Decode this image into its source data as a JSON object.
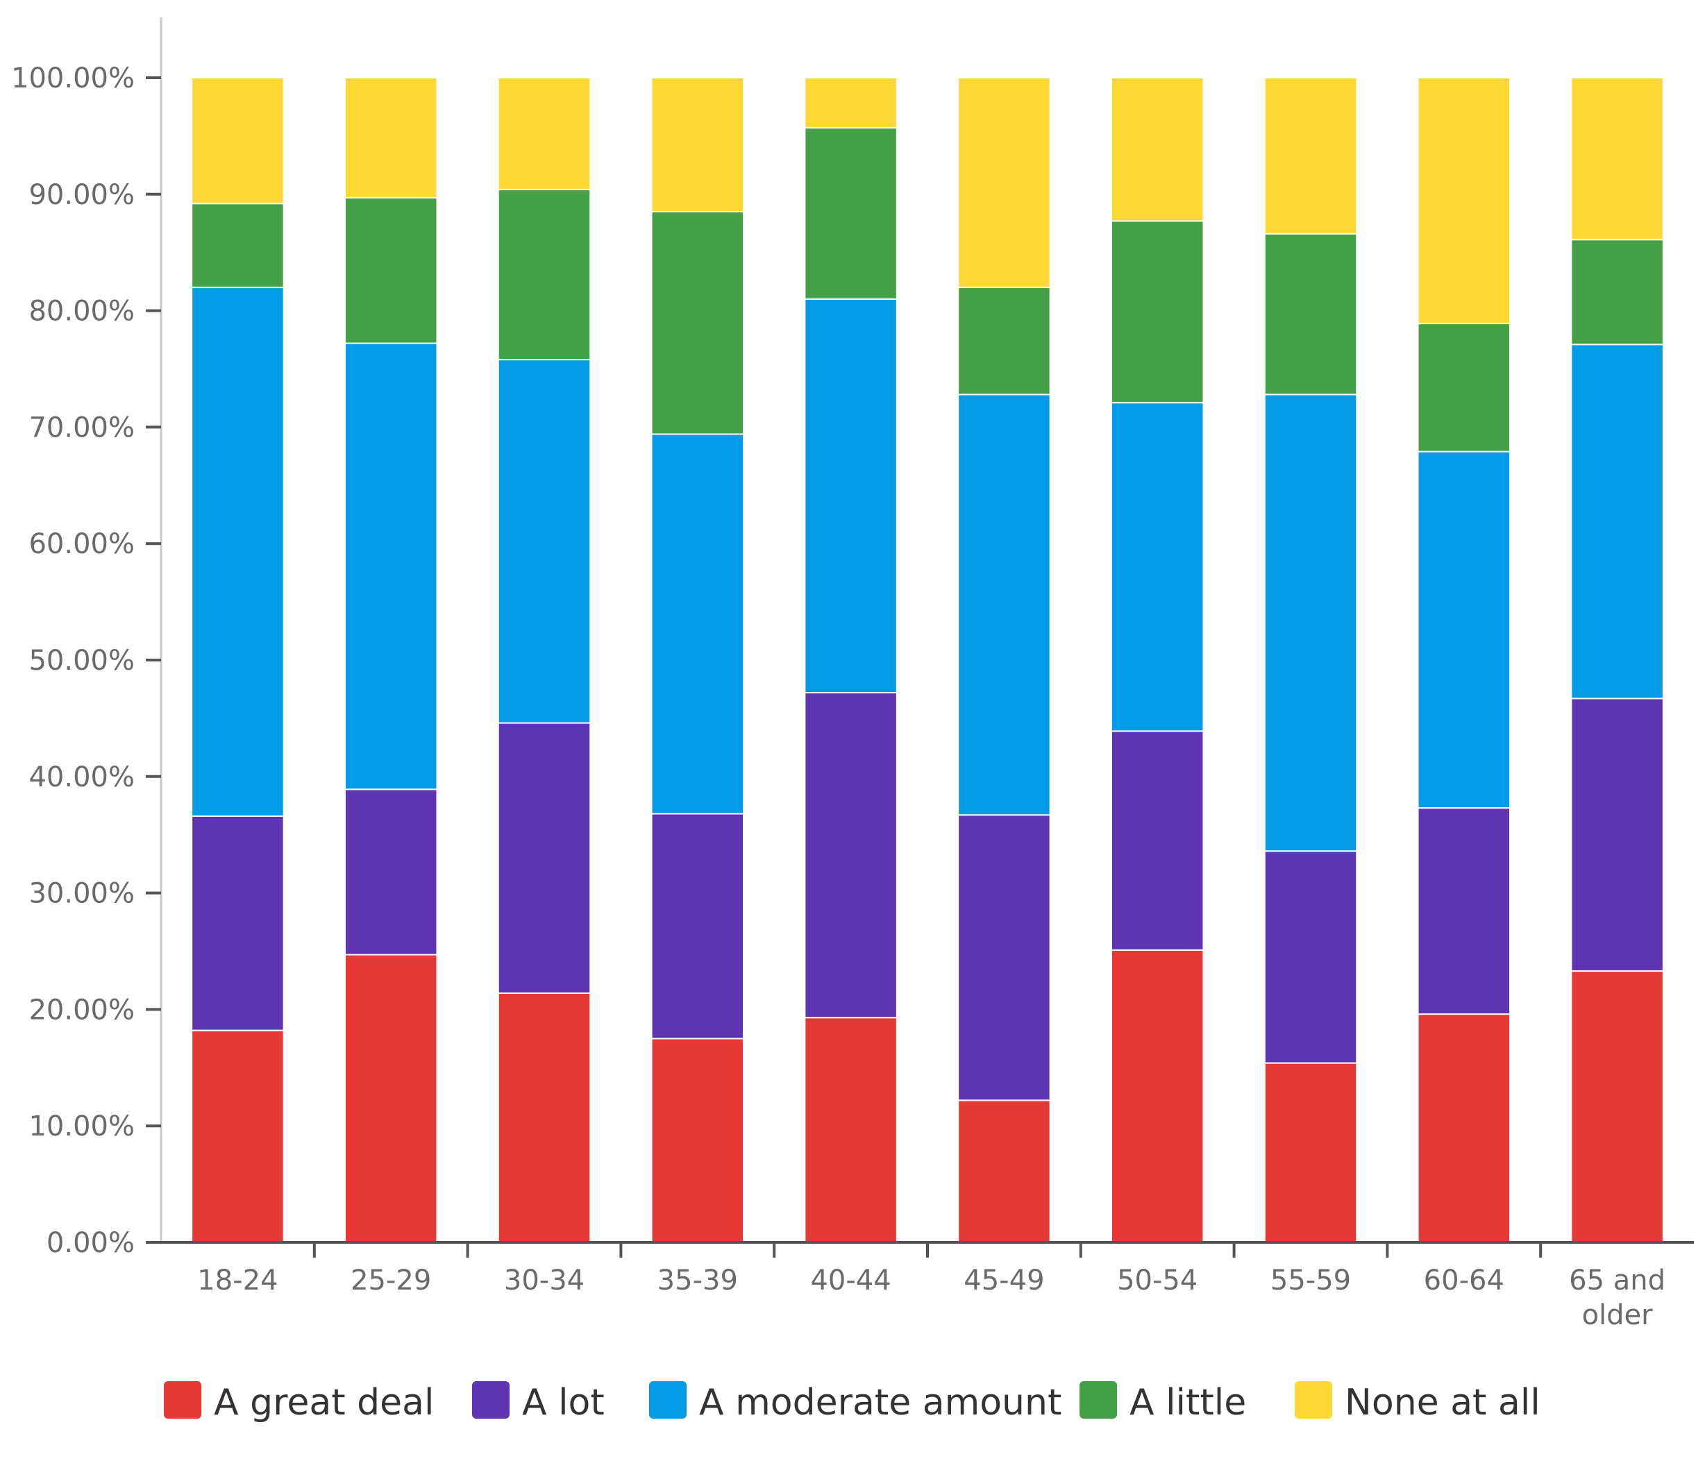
{
  "chart_data": {
    "type": "bar",
    "stacked": true,
    "title": "",
    "xlabel": "",
    "ylabel": "",
    "ylim": [
      0,
      100
    ],
    "y_ticks": [
      "0.00%",
      "10.00%",
      "20.00%",
      "30.00%",
      "40.00%",
      "50.00%",
      "60.00%",
      "70.00%",
      "80.00%",
      "90.00%",
      "100.00%"
    ],
    "grid": false,
    "legend_position": "bottom",
    "categories": [
      "18-24",
      "25-29",
      "30-34",
      "35-39",
      "40-44",
      "45-49",
      "50-54",
      "55-59",
      "60-64",
      "65 and older"
    ],
    "series": [
      {
        "name": "A great deal",
        "color": "#e53935",
        "values": [
          18.2,
          24.7,
          21.4,
          17.5,
          19.3,
          12.2,
          25.1,
          15.4,
          19.6,
          23.3
        ]
      },
      {
        "name": "A lot",
        "color": "#5e35b1",
        "values": [
          18.4,
          14.2,
          23.2,
          19.3,
          27.9,
          24.5,
          18.8,
          18.2,
          17.7,
          23.4
        ]
      },
      {
        "name": "A moderate amount",
        "color": "#039be5",
        "values": [
          45.4,
          38.3,
          31.2,
          32.6,
          33.8,
          36.1,
          28.2,
          39.2,
          30.6,
          30.4
        ]
      },
      {
        "name": "A little",
        "color": "#43a047",
        "values": [
          7.2,
          12.5,
          14.6,
          19.1,
          14.7,
          9.2,
          15.6,
          13.8,
          11.0,
          9.0
        ]
      },
      {
        "name": "None at all",
        "color": "#fdd835",
        "values": [
          10.8,
          10.3,
          9.6,
          11.5,
          4.3,
          18.0,
          12.3,
          13.4,
          21.1,
          13.9
        ]
      }
    ]
  }
}
